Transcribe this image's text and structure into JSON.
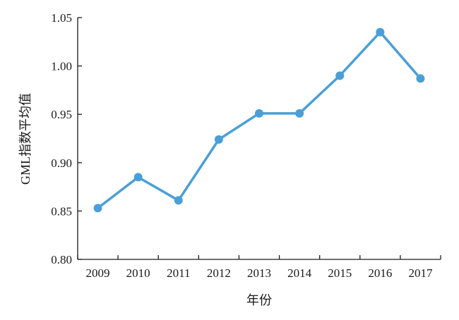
{
  "chart_data": {
    "type": "line",
    "title": "",
    "xlabel": "年份",
    "ylabel": "GML指数平均值",
    "categories": [
      "2009",
      "2010",
      "2011",
      "2012",
      "2013",
      "2014",
      "2015",
      "2016",
      "2017"
    ],
    "series": [
      {
        "values": [
          0.853,
          0.885,
          0.861,
          0.924,
          0.951,
          0.951,
          0.99,
          1.035,
          0.987
        ]
      }
    ],
    "ylim": [
      0.8,
      1.05
    ],
    "yticks": [
      "0.80",
      "0.85",
      "0.90",
      "0.95",
      "1.00",
      "1.05"
    ],
    "grid": false,
    "legend": "none",
    "colors": {
      "line": "#4a9fd8",
      "marker": "#4a9fd8",
      "axis": "#1a1a1a"
    }
  }
}
